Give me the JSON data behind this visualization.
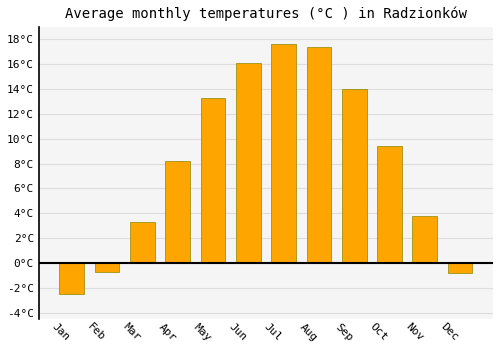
{
  "title": "Average monthly temperatures (°C ) in Radzionków",
  "months": [
    "Jan",
    "Feb",
    "Mar",
    "Apr",
    "May",
    "Jun",
    "Jul",
    "Aug",
    "Sep",
    "Oct",
    "Nov",
    "Dec"
  ],
  "values": [
    -2.5,
    -0.7,
    3.3,
    8.2,
    13.3,
    16.1,
    17.6,
    17.4,
    14.0,
    9.4,
    3.8,
    -0.8
  ],
  "bar_color": "#FFA500",
  "bar_edge_color": "#888800",
  "background_color": "#FFFFFF",
  "plot_bg_color": "#F5F5F5",
  "grid_color": "#DDDDDD",
  "zero_line_color": "#000000",
  "ylim": [
    -4.5,
    19
  ],
  "yticks": [
    -4,
    -2,
    0,
    2,
    4,
    6,
    8,
    10,
    12,
    14,
    16,
    18
  ],
  "title_fontsize": 10,
  "tick_fontsize": 8,
  "font_family": "monospace",
  "xlabel_rotation": -45,
  "bar_width": 0.7
}
